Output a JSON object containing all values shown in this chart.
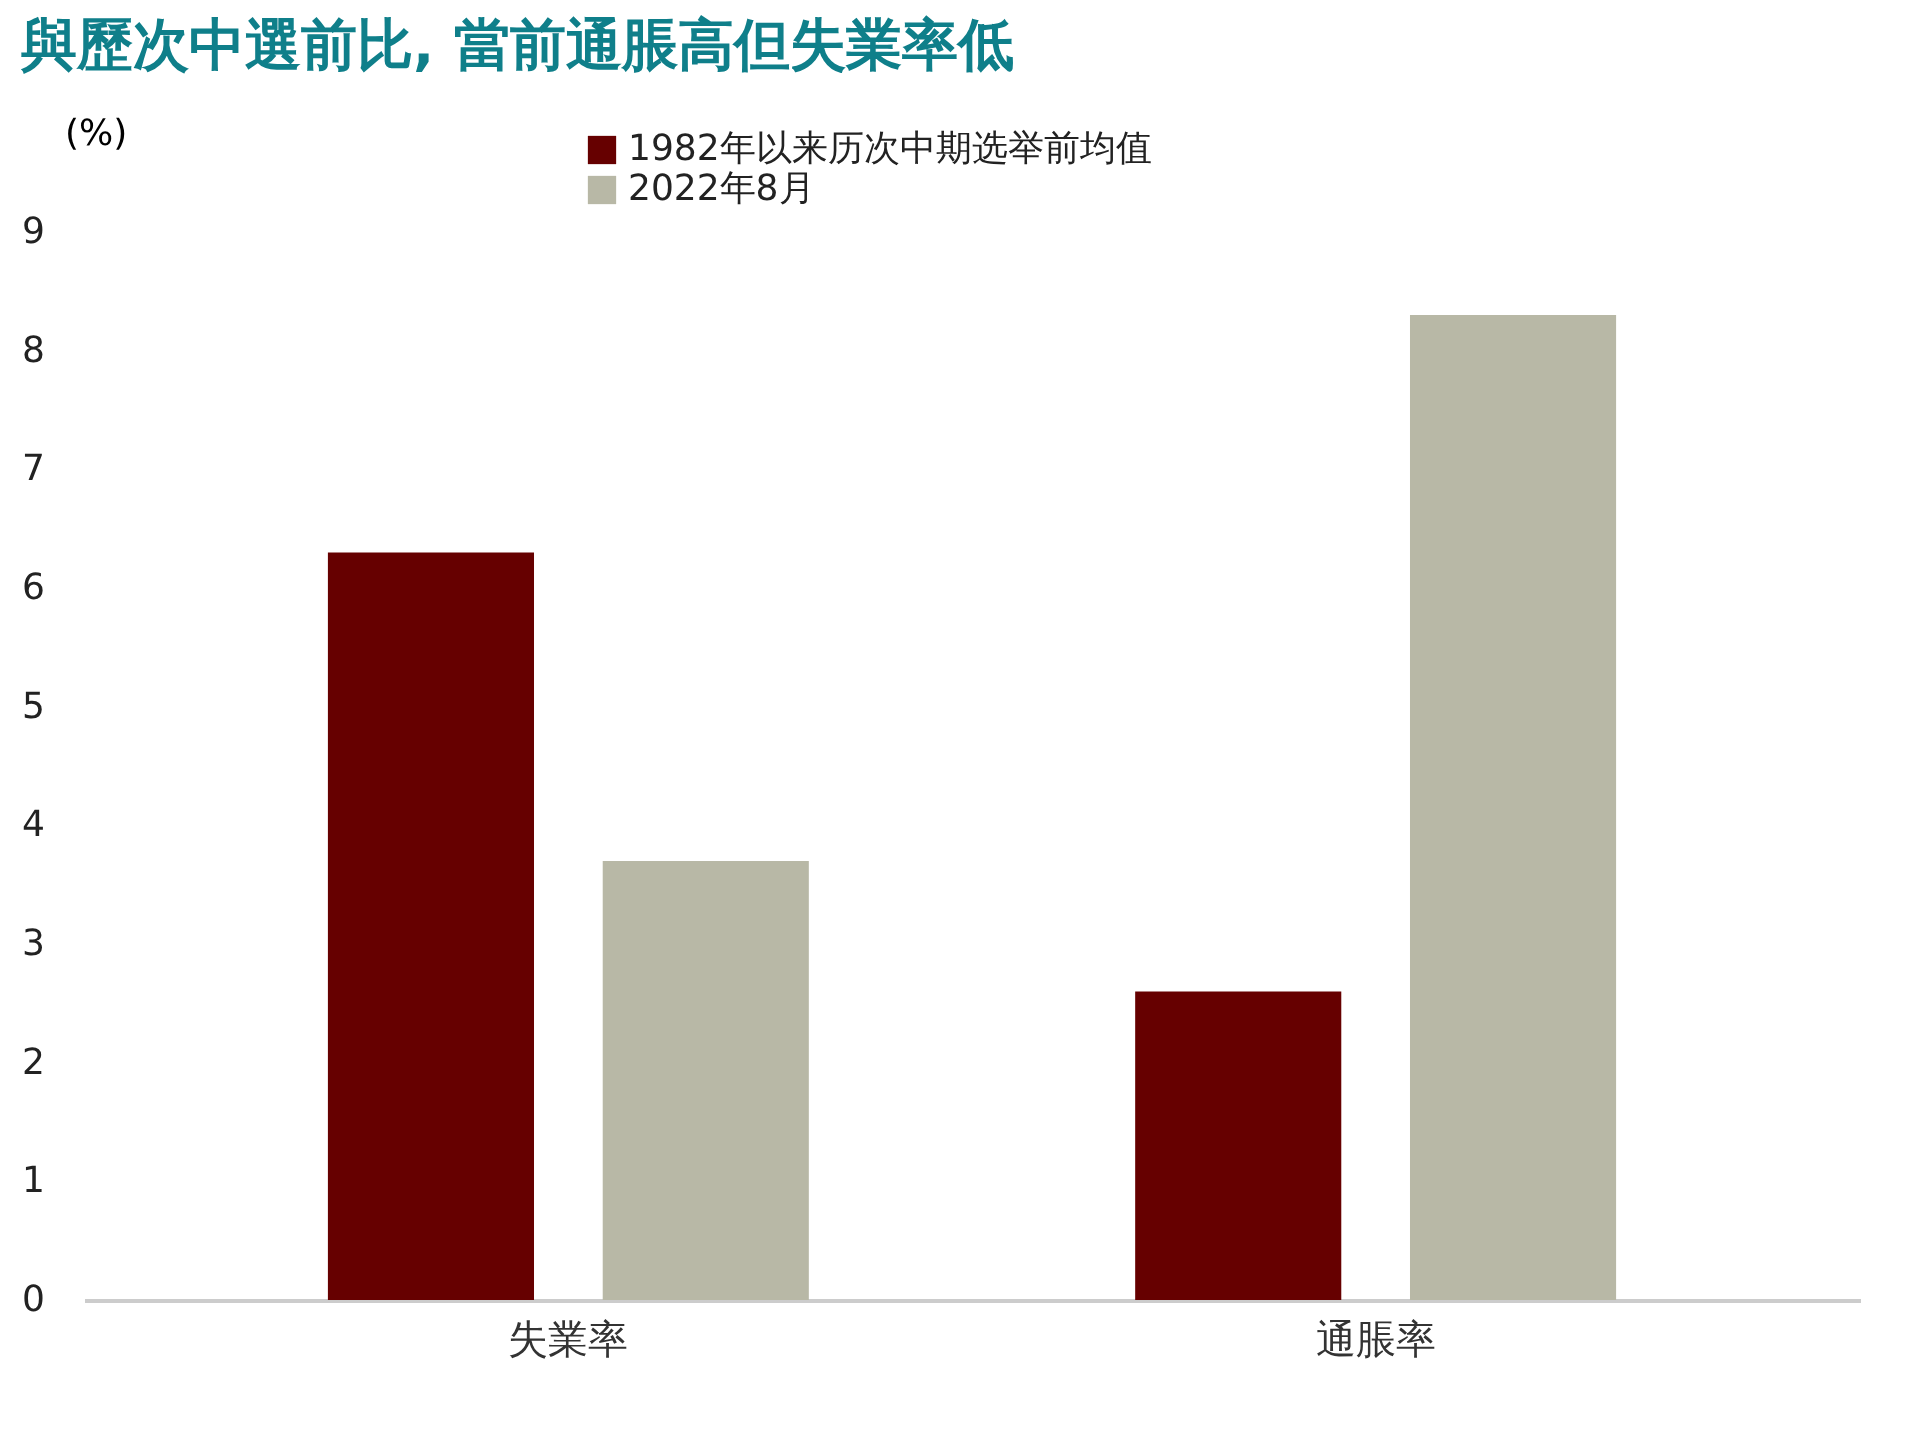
{
  "chart_data": {
    "type": "bar",
    "title": "與歷次中選前比, 當前通脹高但失業率低",
    "ylabel": "(%)",
    "categories": [
      "失業率",
      "通脹率"
    ],
    "series": [
      {
        "name": "1982年以来历次中期选举前均值",
        "color": "#660000",
        "values": [
          6.3,
          2.6
        ]
      },
      {
        "name": "2022年8月",
        "color": "#b8b8a6",
        "values": [
          3.7,
          8.3
        ]
      }
    ],
    "ylim": [
      0,
      9
    ],
    "yticks": [
      0,
      1,
      2,
      3,
      4,
      5,
      6,
      7,
      8,
      9
    ],
    "grid": false,
    "legend": "top"
  }
}
